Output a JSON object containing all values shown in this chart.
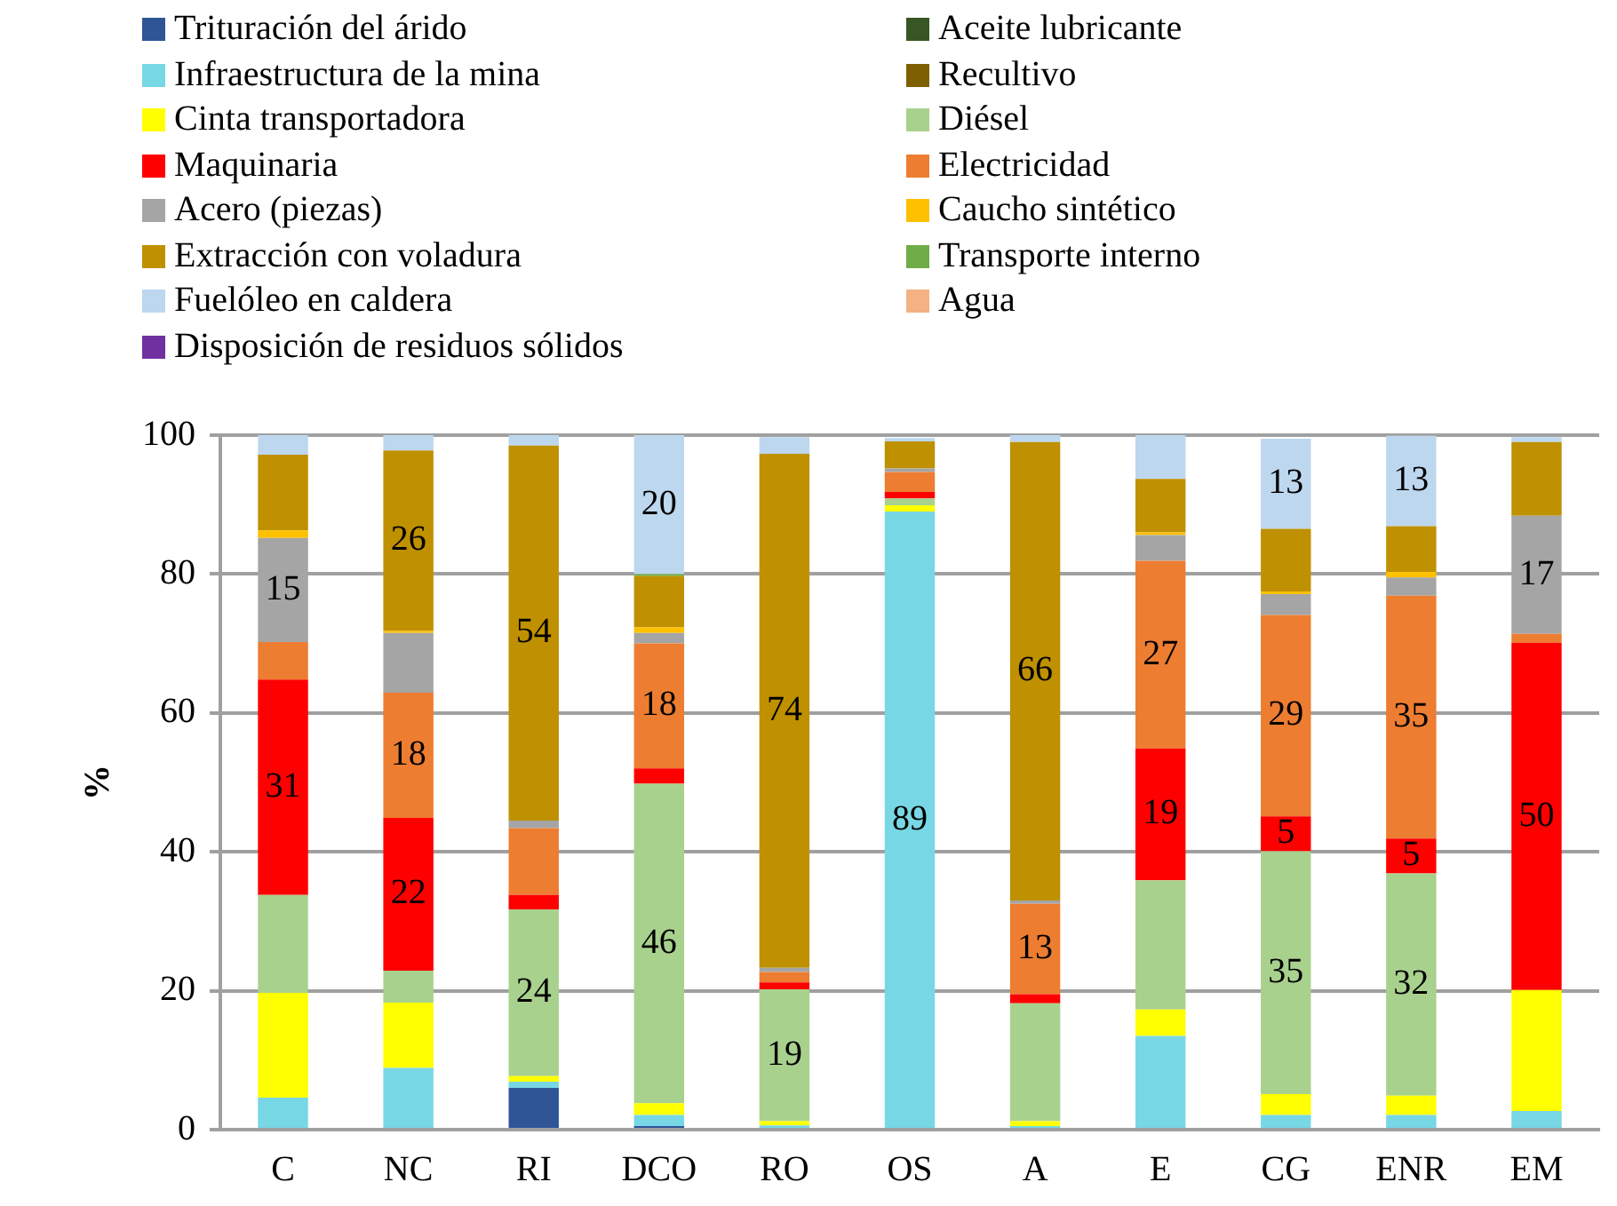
{
  "chart_data": {
    "type": "bar",
    "stacked": true,
    "ylabel": "%",
    "categories": [
      "C",
      "NC",
      "RI",
      "DCO",
      "RO",
      "OS",
      "A",
      "E",
      "CG",
      "ENR",
      "EM"
    ],
    "ylim": [
      0,
      100
    ],
    "yticks": [
      0,
      20,
      40,
      60,
      80,
      100
    ],
    "grid": "y",
    "legend": "top",
    "series": [
      {
        "name": "Trituración del árido",
        "color": "#2f5597",
        "values": [
          0,
          0,
          6.0,
          0.5,
          0,
          0,
          0,
          0,
          0,
          0,
          0
        ]
      },
      {
        "name": "Aceite lubricante",
        "color": "#375623",
        "values": [
          0,
          0,
          0,
          0,
          0,
          0,
          0,
          0,
          0,
          0,
          0
        ]
      },
      {
        "name": "Infraestructura de la mina",
        "color": "#78d7e4",
        "values": [
          4.6,
          8.9,
          0.9,
          1.6,
          0.6,
          89,
          0.5,
          13.5,
          2.1,
          2.1,
          2.7
        ],
        "value_labels": [
          null,
          null,
          null,
          null,
          null,
          "89",
          null,
          null,
          null,
          null,
          null
        ]
      },
      {
        "name": "Recultivo",
        "color": "#7f6000",
        "values": [
          0,
          0,
          0,
          0,
          0,
          0,
          0,
          0,
          0,
          0,
          0
        ]
      },
      {
        "name": "Cinta transportadora",
        "color": "#ffff00",
        "values": [
          15.1,
          9.4,
          0.8,
          1.7,
          0.6,
          0.9,
          0.7,
          3.8,
          3.0,
          2.8,
          17.4
        ]
      },
      {
        "name": "Diésel",
        "color": "#a9d18e",
        "values": [
          14.1,
          4.6,
          24,
          46,
          19,
          1.0,
          17,
          18.6,
          35,
          32,
          0
        ],
        "value_labels": [
          null,
          null,
          "24",
          "46",
          "19",
          null,
          null,
          null,
          "35",
          "32",
          null
        ]
      },
      {
        "name": "Maquinaria",
        "color": "#ff0000",
        "values": [
          31,
          22,
          2.1,
          2.2,
          1.0,
          0.9,
          1.3,
          19,
          5,
          5,
          50
        ],
        "value_labels": [
          "31",
          "22",
          null,
          null,
          null,
          null,
          null,
          "19",
          "5",
          "5",
          "50"
        ]
      },
      {
        "name": "Electricidad",
        "color": "#ed7d31",
        "values": [
          5.4,
          18,
          9.6,
          18,
          1.5,
          2.9,
          13,
          27,
          29,
          35,
          1.3
        ],
        "value_labels": [
          null,
          "18",
          null,
          "18",
          null,
          null,
          "13",
          "27",
          "29",
          "35",
          null
        ]
      },
      {
        "name": "Acero (piezas)",
        "color": "#a5a5a5",
        "values": [
          15,
          8.6,
          1.1,
          1.5,
          0.6,
          0.5,
          0.5,
          3.7,
          3.0,
          2.6,
          17
        ],
        "value_labels": [
          "15",
          null,
          null,
          null,
          null,
          null,
          null,
          null,
          null,
          null,
          "17"
        ]
      },
      {
        "name": "Caucho sintético",
        "color": "#ffc000",
        "values": [
          1.1,
          0.3,
          0,
          0.8,
          0,
          0,
          0,
          0.4,
          0.4,
          0.8,
          0
        ]
      },
      {
        "name": "Extracción con voladura",
        "color": "#bf9000",
        "values": [
          10.9,
          26,
          54,
          7.4,
          74,
          3.9,
          66,
          7.7,
          9.0,
          6.6,
          10.6
        ],
        "value_labels": [
          null,
          "26",
          "54",
          null,
          "74",
          null,
          "66",
          null,
          null,
          null,
          null
        ]
      },
      {
        "name": "Transporte interno",
        "color": "#70ad47",
        "values": [
          0,
          0,
          0,
          0.3,
          0,
          0,
          0,
          0,
          0,
          0,
          0
        ]
      },
      {
        "name": "Fuelóleo en caldera",
        "color": "#bdd7ee",
        "values": [
          2.8,
          2.2,
          1.5,
          20,
          2.4,
          0.5,
          1.0,
          6.3,
          13,
          13,
          0.7
        ],
        "value_labels": [
          null,
          null,
          null,
          "20",
          null,
          null,
          null,
          null,
          "13",
          "13",
          null
        ]
      },
      {
        "name": "Agua",
        "color": "#f4b183",
        "values": [
          0,
          0,
          0,
          0,
          0,
          0,
          0,
          0,
          0,
          0,
          0
        ]
      },
      {
        "name": "Disposición de residuos sólidos",
        "color": "#7030a0",
        "values": [
          0,
          0,
          0,
          0,
          0,
          0,
          0,
          0,
          0,
          0,
          0
        ]
      }
    ]
  }
}
